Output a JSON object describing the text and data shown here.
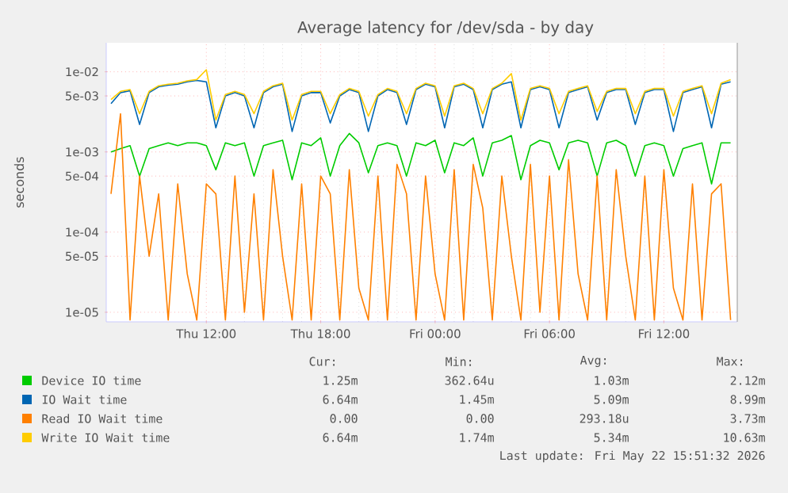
{
  "chart_data": {
    "type": "line",
    "title": "Average latency for /dev/sda - by day",
    "ylabel": "seconds",
    "x": [
      "2026-05-21T07:00",
      "2026-05-21T07:30",
      "2026-05-21T08:00",
      "2026-05-21T08:30",
      "2026-05-21T09:00",
      "2026-05-21T09:30",
      "2026-05-21T10:00",
      "2026-05-21T10:30",
      "2026-05-21T11:00",
      "2026-05-21T11:30",
      "2026-05-21T12:00",
      "2026-05-21T12:30",
      "2026-05-21T13:00",
      "2026-05-21T13:30",
      "2026-05-21T14:00",
      "2026-05-21T14:30",
      "2026-05-21T15:00",
      "2026-05-21T15:30",
      "2026-05-21T16:00",
      "2026-05-21T16:30",
      "2026-05-21T17:00",
      "2026-05-21T17:30",
      "2026-05-21T18:00",
      "2026-05-21T18:30",
      "2026-05-21T19:00",
      "2026-05-21T19:30",
      "2026-05-21T20:00",
      "2026-05-21T20:30",
      "2026-05-21T21:00",
      "2026-05-21T21:30",
      "2026-05-21T22:00",
      "2026-05-21T22:30",
      "2026-05-21T23:00",
      "2026-05-21T23:30",
      "2026-05-22T00:00",
      "2026-05-22T00:30",
      "2026-05-22T01:00",
      "2026-05-22T01:30",
      "2026-05-22T02:00",
      "2026-05-22T02:30",
      "2026-05-22T03:00",
      "2026-05-22T03:30",
      "2026-05-22T04:00",
      "2026-05-22T04:30",
      "2026-05-22T05:00",
      "2026-05-22T05:30",
      "2026-05-22T06:00",
      "2026-05-22T06:30",
      "2026-05-22T07:00",
      "2026-05-22T07:30",
      "2026-05-22T08:00",
      "2026-05-22T08:30",
      "2026-05-22T09:00",
      "2026-05-22T09:30",
      "2026-05-22T10:00",
      "2026-05-22T10:30",
      "2026-05-22T11:00",
      "2026-05-22T11:30",
      "2026-05-22T12:00",
      "2026-05-22T12:30",
      "2026-05-22T13:00",
      "2026-05-22T13:30",
      "2026-05-22T14:00",
      "2026-05-22T14:30",
      "2026-05-22T15:00",
      "2026-05-22T15:30"
    ],
    "series": [
      {
        "name": "Device IO time",
        "color": "#00cc00",
        "values": [
          0.001,
          0.0011,
          0.0012,
          0.0005,
          0.0011,
          0.0012,
          0.0013,
          0.0012,
          0.0013,
          0.0013,
          0.0012,
          0.0006,
          0.0013,
          0.0012,
          0.0013,
          0.0005,
          0.0012,
          0.0013,
          0.0014,
          0.00045,
          0.0013,
          0.0012,
          0.0015,
          0.0005,
          0.0012,
          0.0017,
          0.0013,
          0.00055,
          0.0012,
          0.0013,
          0.0012,
          0.0005,
          0.0013,
          0.0012,
          0.0014,
          0.00055,
          0.0013,
          0.0012,
          0.0015,
          0.0005,
          0.0013,
          0.0014,
          0.0016,
          0.00045,
          0.0012,
          0.0014,
          0.0013,
          0.0006,
          0.0013,
          0.0014,
          0.0013,
          0.0005,
          0.0013,
          0.0014,
          0.0012,
          0.0005,
          0.0012,
          0.0013,
          0.0012,
          0.0005,
          0.0011,
          0.0012,
          0.0013,
          0.0004,
          0.0013,
          0.0013
        ]
      },
      {
        "name": "IO Wait time",
        "color": "#0066b3",
        "values": [
          0.004,
          0.0055,
          0.0058,
          0.0022,
          0.0055,
          0.0065,
          0.0068,
          0.007,
          0.0075,
          0.0078,
          0.0075,
          0.002,
          0.005,
          0.0055,
          0.005,
          0.002,
          0.0055,
          0.0065,
          0.007,
          0.0018,
          0.005,
          0.0055,
          0.0055,
          0.0023,
          0.005,
          0.006,
          0.0055,
          0.0018,
          0.005,
          0.006,
          0.0055,
          0.0022,
          0.006,
          0.007,
          0.0065,
          0.002,
          0.0065,
          0.007,
          0.006,
          0.002,
          0.006,
          0.007,
          0.0075,
          0.002,
          0.006,
          0.0065,
          0.006,
          0.002,
          0.0055,
          0.006,
          0.0065,
          0.0025,
          0.0055,
          0.006,
          0.006,
          0.0022,
          0.0055,
          0.006,
          0.006,
          0.0018,
          0.0055,
          0.006,
          0.0065,
          0.002,
          0.007,
          0.0075
        ]
      },
      {
        "name": "Read IO Wait time",
        "color": "#ff8000",
        "values": [
          0.0003,
          0.003,
          8e-06,
          0.0005,
          5e-05,
          0.0003,
          8e-06,
          0.0004,
          3e-05,
          8e-06,
          0.0004,
          0.0003,
          8e-06,
          0.0005,
          1e-05,
          0.0003,
          8e-06,
          0.0006,
          5e-05,
          8e-06,
          0.0004,
          8e-06,
          0.0005,
          0.0003,
          8e-06,
          0.0006,
          2e-05,
          8e-06,
          0.0005,
          8e-06,
          0.0007,
          0.0003,
          8e-06,
          0.0005,
          3e-05,
          8e-06,
          0.0006,
          8e-06,
          0.0007,
          0.0002,
          8e-06,
          0.0005,
          5e-05,
          8e-06,
          0.0007,
          1e-05,
          0.0005,
          8e-06,
          0.0008,
          3e-05,
          8e-06,
          0.0005,
          8e-06,
          0.0006,
          5e-05,
          8e-06,
          0.0005,
          8e-06,
          0.0006,
          2e-05,
          8e-06,
          0.0004,
          8e-06,
          0.0003,
          0.0004,
          8e-06
        ]
      },
      {
        "name": "Write IO Wait time",
        "color": "#ffcc00",
        "values": [
          0.0045,
          0.0057,
          0.006,
          0.003,
          0.0057,
          0.0067,
          0.007,
          0.0072,
          0.0077,
          0.008,
          0.0106,
          0.0025,
          0.0052,
          0.0057,
          0.0052,
          0.003,
          0.0057,
          0.0067,
          0.0072,
          0.0025,
          0.0052,
          0.0057,
          0.0057,
          0.003,
          0.0052,
          0.0062,
          0.0057,
          0.0028,
          0.0052,
          0.0062,
          0.0057,
          0.003,
          0.0062,
          0.0072,
          0.0067,
          0.0028,
          0.0067,
          0.0072,
          0.0062,
          0.003,
          0.0062,
          0.0072,
          0.0095,
          0.0025,
          0.0062,
          0.0067,
          0.0062,
          0.003,
          0.0057,
          0.0062,
          0.0067,
          0.0032,
          0.0057,
          0.0062,
          0.0062,
          0.003,
          0.0057,
          0.0062,
          0.0062,
          0.0028,
          0.0057,
          0.0062,
          0.0067,
          0.003,
          0.0072,
          0.008
        ]
      }
    ],
    "xlim": [
      "2026-05-21T06:45",
      "2026-05-22T15:51"
    ],
    "xticks": [
      {
        "value": "2026-05-21T12:00",
        "label": "Thu 12:00"
      },
      {
        "value": "2026-05-21T18:00",
        "label": "Thu 18:00"
      },
      {
        "value": "2026-05-22T00:00",
        "label": "Fri 00:00"
      },
      {
        "value": "2026-05-22T06:00",
        "label": "Fri 06:00"
      },
      {
        "value": "2026-05-22T12:00",
        "label": "Fri 12:00"
      }
    ],
    "ylim": [
      7.6e-06,
      0.023
    ],
    "yticks": [
      {
        "value": 1e-05,
        "label": "1e-05"
      },
      {
        "value": 5e-05,
        "label": "5e-05"
      },
      {
        "value": 0.0001,
        "label": "1e-04"
      },
      {
        "value": 0.0005,
        "label": "5e-04"
      },
      {
        "value": 0.001,
        "label": "1e-03"
      },
      {
        "value": 0.005,
        "label": "5e-03"
      },
      {
        "value": 0.01,
        "label": "1e-02"
      }
    ],
    "log": "y",
    "grid": true,
    "legend": "bottom",
    "annotations": [
      "Cur:",
      "Min:",
      "Avg:",
      "Max:",
      "1.25m",
      "362.64u",
      "1.03m",
      "2.12m",
      "6.64m",
      "1.45m",
      "5.09m",
      "8.99m",
      "0.00",
      "0.00",
      "293.18u",
      "3.73m",
      "6.64m",
      "1.74m",
      "5.34m",
      "10.63m",
      "Last update: Fri May 22 15:51:32 2026"
    ]
  }
}
